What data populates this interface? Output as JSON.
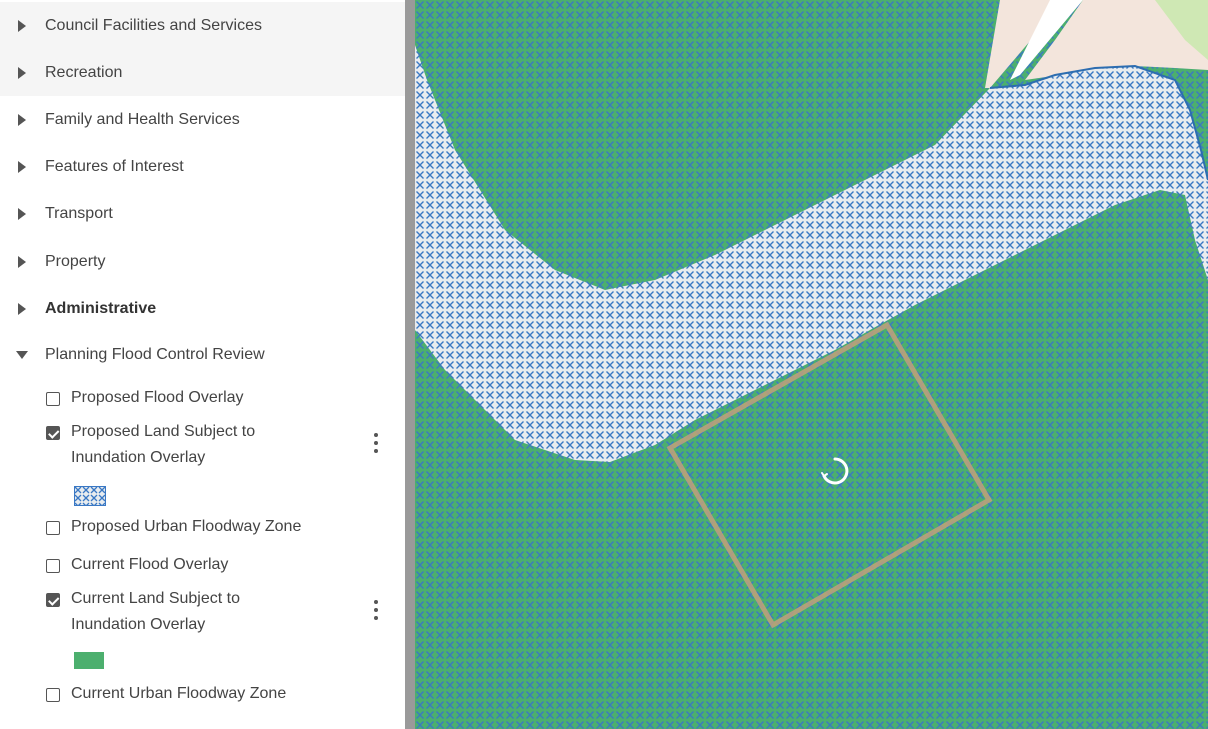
{
  "layer_groups": [
    {
      "label": "Council Facilities and Services"
    },
    {
      "label": "Recreation"
    },
    {
      "label": "Family and Health Services"
    },
    {
      "label": "Features of Interest"
    },
    {
      "label": "Transport"
    },
    {
      "label": "Property"
    },
    {
      "label": "Administrative"
    },
    {
      "label": "Planning Flood Control Review"
    }
  ],
  "layers": [
    {
      "label": "Proposed Flood Overlay",
      "checked": false
    },
    {
      "label": "Proposed Land Subject to Inundation Overlay",
      "checked": true
    },
    {
      "label": "Proposed Urban Floodway Zone",
      "checked": false
    },
    {
      "label": "Current Flood Overlay",
      "checked": false
    },
    {
      "label": "Current Land Subject to Inundation Overlay",
      "checked": true
    },
    {
      "label": "Current Urban Floodway Zone",
      "checked": false
    }
  ],
  "colors": {
    "current_lsio_fill": "#4caf6e",
    "proposed_lsio_hatch": "#3a78c4",
    "proposed_lsio_bg": "#e8ecef",
    "selection_outline": "#c9a07a",
    "road": "#f3e5dc",
    "park": "#cfe8b4"
  },
  "icons": {
    "group_collapsed": "caret-right-icon",
    "group_expanded": "caret-down-icon",
    "layer_menu": "more-vert-icon",
    "loading": "loading-spinner-icon"
  }
}
